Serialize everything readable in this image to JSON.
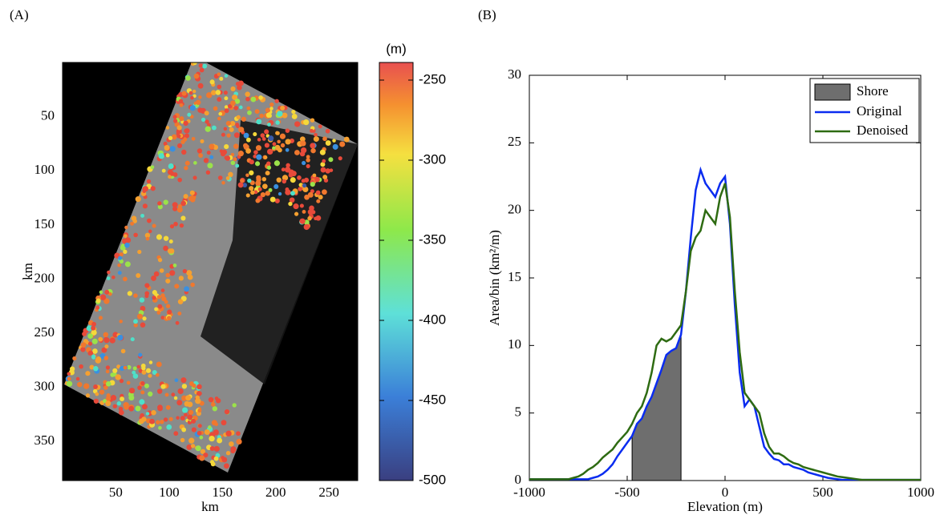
{
  "chart_data": [
    {
      "type": "image",
      "panel_label": "(A)",
      "x_label": "km",
      "y_label": "km",
      "xlim": [
        0,
        277
      ],
      "xticks": [
        50,
        100,
        150,
        200,
        250
      ],
      "ylim": [
        386,
        0
      ],
      "yticks": [
        50,
        100,
        150,
        200,
        250,
        300,
        350
      ],
      "colorbar": {
        "label": "(m)",
        "lim": [
          -500,
          -239
        ],
        "ticks": [
          -250,
          -300,
          -350,
          -400,
          -450,
          -500
        ]
      }
    },
    {
      "type": "line",
      "panel_label": "(B)",
      "x_label": "Elevation (m)",
      "y_label": "Area/bin (km²/m)",
      "xlim": [
        -1000,
        1000
      ],
      "xticks": [
        -1000,
        -500,
        0,
        500,
        1000
      ],
      "ylim": [
        0,
        30
      ],
      "yticks": [
        0,
        5,
        10,
        15,
        20,
        25,
        30
      ],
      "legend": "upper right",
      "x": [
        -1000,
        -975,
        -950,
        -925,
        -900,
        -875,
        -850,
        -825,
        -800,
        -775,
        -750,
        -725,
        -700,
        -675,
        -650,
        -625,
        -600,
        -575,
        -550,
        -525,
        -500,
        -475,
        -450,
        -425,
        -400,
        -375,
        -350,
        -325,
        -300,
        -275,
        -250,
        -225,
        -200,
        -175,
        -150,
        -125,
        -100,
        -75,
        -50,
        -25,
        0,
        25,
        50,
        75,
        100,
        125,
        150,
        175,
        200,
        225,
        250,
        275,
        300,
        325,
        350,
        375,
        400,
        425,
        450,
        475,
        500,
        525,
        550,
        575,
        600,
        625,
        650,
        675,
        700,
        725,
        750,
        775,
        800,
        825,
        850,
        875,
        900,
        925,
        950,
        975,
        1000
      ],
      "area": {
        "name": "Shore",
        "color": "#6e6e6e",
        "x": [
          -475,
          -450,
          -425,
          -400,
          -375,
          -350,
          -325,
          -300,
          -275,
          -250,
          -225
        ],
        "values": [
          3.3,
          4.2,
          4.6,
          5.5,
          6.2,
          7.2,
          8.2,
          9.3,
          9.6,
          9.8,
          10.8
        ]
      },
      "series": [
        {
          "name": "Original",
          "color": "#0a2cf0",
          "values": [
            0.1,
            0.1,
            0.1,
            0.1,
            0.1,
            0.1,
            0.1,
            0.1,
            0.1,
            0.1,
            0.1,
            0.1,
            0.1,
            0.2,
            0.3,
            0.5,
            0.8,
            1.2,
            1.8,
            2.3,
            2.8,
            3.3,
            4.2,
            4.6,
            5.5,
            6.2,
            7.2,
            8.2,
            9.3,
            9.6,
            9.8,
            10.8,
            14,
            18,
            21.5,
            23,
            22,
            21.5,
            21,
            22,
            22.5,
            19,
            13,
            8,
            5.5,
            6,
            5.5,
            4,
            2.5,
            2,
            1.6,
            1.5,
            1.2,
            1.2,
            1,
            0.9,
            0.8,
            0.6,
            0.5,
            0.4,
            0.3,
            0.2,
            0.15,
            0.1,
            0.05,
            0.05,
            0.05,
            0.05,
            0.05,
            0.05,
            0.05,
            0.05,
            0.05,
            0.05,
            0.05,
            0.05,
            0.05,
            0.05,
            0.05,
            0.05,
            0.05
          ]
        },
        {
          "name": "Denoised",
          "color": "#2e6b12",
          "values": [
            0.1,
            0.1,
            0.1,
            0.1,
            0.1,
            0.1,
            0.1,
            0.1,
            0.1,
            0.2,
            0.3,
            0.5,
            0.8,
            1.0,
            1.3,
            1.7,
            2.0,
            2.3,
            2.8,
            3.2,
            3.6,
            4.2,
            5.0,
            5.5,
            6.5,
            8,
            10,
            10.5,
            10.3,
            10.5,
            11,
            11.5,
            14,
            17,
            18,
            18.5,
            20,
            19.5,
            19,
            21,
            22,
            19.5,
            14,
            9.5,
            6.5,
            6,
            5.5,
            5,
            3.5,
            2.5,
            2,
            2,
            1.8,
            1.5,
            1.3,
            1.2,
            1,
            0.9,
            0.8,
            0.7,
            0.6,
            0.5,
            0.4,
            0.3,
            0.25,
            0.2,
            0.15,
            0.1,
            0.05,
            0.05,
            0.05,
            0.05,
            0.05,
            0.05,
            0.05,
            0.05,
            0.05,
            0.05,
            0.05,
            0.05,
            0.05
          ]
        }
      ]
    }
  ]
}
